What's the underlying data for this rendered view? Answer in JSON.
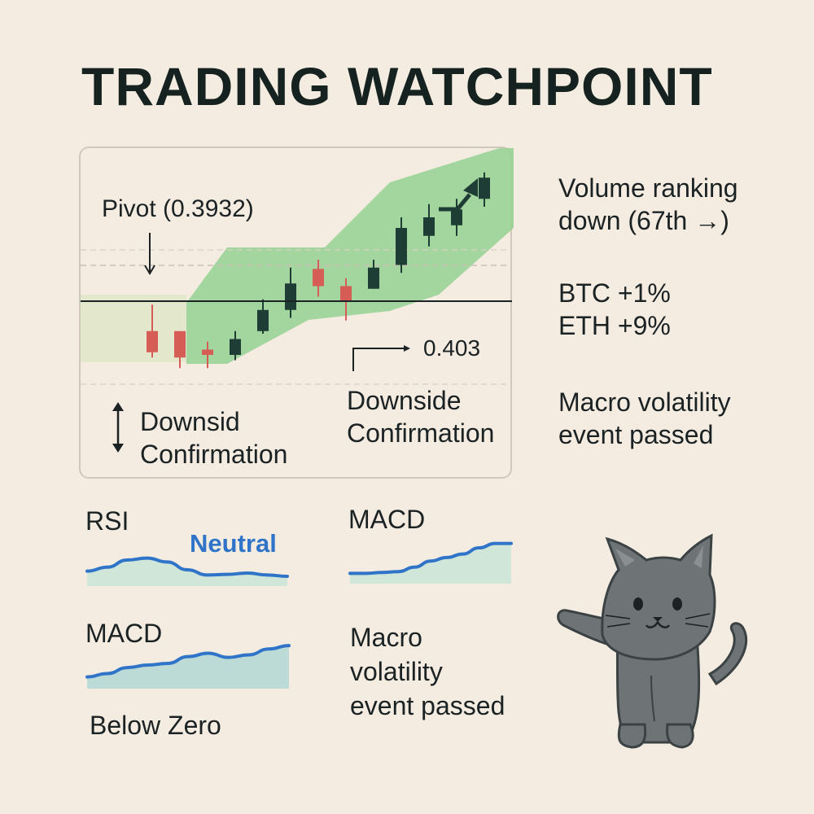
{
  "title": "TRADING WATCHPOINT",
  "chart_data": [
    {
      "type": "candlestick",
      "title": "",
      "candles": [
        {
          "open": 0.372,
          "high": 0.382,
          "low": 0.362,
          "close": 0.364
        },
        {
          "open": 0.372,
          "high": 0.372,
          "low": 0.358,
          "close": 0.362
        },
        {
          "open": 0.365,
          "high": 0.368,
          "low": 0.358,
          "close": 0.363
        },
        {
          "open": 0.363,
          "high": 0.372,
          "low": 0.361,
          "close": 0.369
        },
        {
          "open": 0.372,
          "high": 0.384,
          "low": 0.371,
          "close": 0.38
        },
        {
          "open": 0.38,
          "high": 0.396,
          "low": 0.377,
          "close": 0.39
        },
        {
          "open": 0.3955,
          "high": 0.399,
          "low": 0.385,
          "close": 0.389
        },
        {
          "open": 0.389,
          "high": 0.392,
          "low": 0.376,
          "close": 0.383
        },
        {
          "open": 0.388,
          "high": 0.399,
          "low": 0.388,
          "close": 0.396
        },
        {
          "open": 0.397,
          "high": 0.415,
          "low": 0.394,
          "close": 0.411
        },
        {
          "open": 0.408,
          "high": 0.42,
          "low": 0.404,
          "close": 0.415
        },
        {
          "open": 0.412,
          "high": 0.422,
          "low": 0.408,
          "close": 0.418
        },
        {
          "open": 0.422,
          "high": 0.432,
          "low": 0.419,
          "close": 0.43
        }
      ],
      "pivot_line": 0.3932,
      "level_line": 0.403,
      "colors": {
        "up": "#1e3d35",
        "down": "#d65c56",
        "band": "#8fcf8d",
        "zone": "#dfe7c8",
        "line": "#1b2224"
      }
    },
    {
      "type": "area",
      "title": "RSI",
      "values": [
        38,
        44,
        55,
        58,
        52,
        40,
        32,
        33,
        35,
        32,
        30
      ],
      "label": "Neutral",
      "colors": {
        "line": "#2f74c9",
        "fill": "#cfe6d9"
      }
    },
    {
      "type": "area",
      "title": "MACD",
      "values": [
        28,
        28,
        29,
        30,
        35,
        42,
        46,
        50,
        57,
        62,
        62
      ],
      "colors": {
        "line": "#2f74c9",
        "fill": "#cfe6d9"
      }
    },
    {
      "type": "area",
      "title": "MACD",
      "values": [
        30,
        34,
        41,
        44,
        46,
        54,
        58,
        53,
        56,
        63,
        67
      ],
      "colors": {
        "line": "#2f74c9",
        "fill": "#bcdbd7"
      }
    }
  ],
  "annotations": {
    "pivot": "Pivot (0.3932)",
    "level": "0.403",
    "left_note": [
      "Downsid",
      "Confirmation"
    ],
    "mid_note": [
      "Downside",
      "Confirmation"
    ]
  },
  "side_notes": {
    "volume": [
      "Volume ranking",
      "down (67th →)"
    ],
    "btc": "BTC +1%",
    "eth": "ETH +9%",
    "macro": [
      "Macro volatility",
      "event passed"
    ]
  },
  "indicators": {
    "rsi_label": "RSI",
    "rsi_status": "Neutral",
    "macd_top_label": "MACD",
    "macd_bottom_label": "MACD",
    "macd_status": "Below Zero",
    "macro_note": [
      "Macro",
      "volatility",
      "event passed"
    ]
  },
  "mascot": {
    "icon": "cat-icon",
    "color": "#6e7476"
  }
}
